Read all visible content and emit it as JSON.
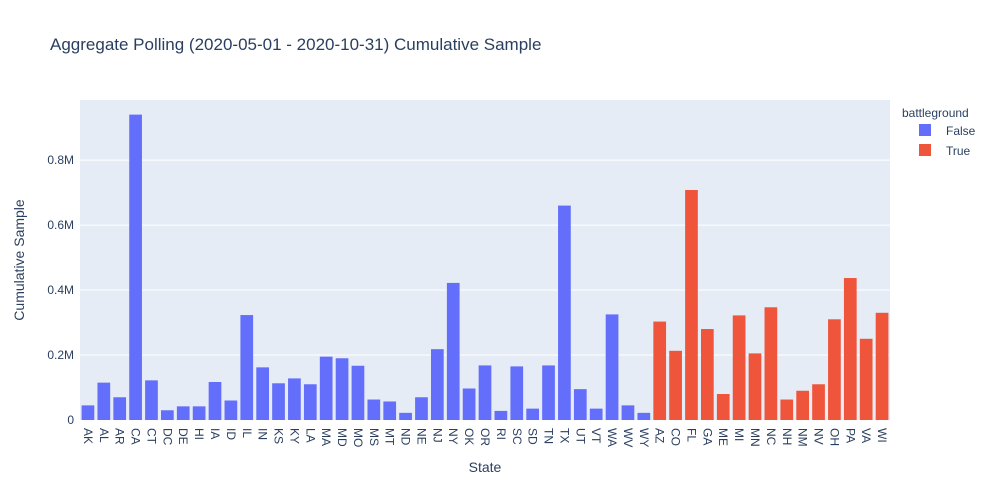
{
  "chart_data": {
    "type": "bar",
    "title": "Aggregate Polling (2020-05-01 - 2020-10-31) Cumulative Sample",
    "xlabel": "State",
    "ylabel": "Cumulative Sample",
    "ylim": [
      0,
      985000
    ],
    "yticks": [
      0,
      200000,
      400000,
      600000,
      800000
    ],
    "ytick_labels": [
      "0",
      "0.2M",
      "0.4M",
      "0.6M",
      "0.8M"
    ],
    "grid": true,
    "legend": {
      "title": "battleground",
      "placement": "top-right"
    },
    "series": [
      {
        "name": "False",
        "color": "#636efa",
        "categories": [
          "AK",
          "AL",
          "AR",
          "CA",
          "CT",
          "DC",
          "DE",
          "HI",
          "IA",
          "ID",
          "IL",
          "IN",
          "KS",
          "KY",
          "LA",
          "MA",
          "MD",
          "MO",
          "MS",
          "MT",
          "ND",
          "NE",
          "NJ",
          "NY",
          "OK",
          "OR",
          "RI",
          "SC",
          "SD",
          "TN",
          "TX",
          "UT",
          "VT",
          "WA",
          "WV",
          "WY"
        ],
        "values": [
          45000,
          115000,
          70000,
          940000,
          122000,
          30000,
          42000,
          42000,
          117000,
          60000,
          323000,
          162000,
          113000,
          128000,
          110000,
          195000,
          190000,
          167000,
          63000,
          57000,
          22000,
          70000,
          218000,
          422000,
          97000,
          168000,
          28000,
          165000,
          35000,
          168000,
          660000,
          95000,
          35000,
          325000,
          45000,
          22000
        ]
      },
      {
        "name": "True",
        "color": "#ef553b",
        "categories": [
          "AZ",
          "CO",
          "FL",
          "GA",
          "ME",
          "MI",
          "MN",
          "NC",
          "NH",
          "NM",
          "NV",
          "OH",
          "PA",
          "VA",
          "WI"
        ],
        "values": [
          303000,
          213000,
          708000,
          280000,
          80000,
          322000,
          205000,
          347000,
          63000,
          90000,
          110000,
          310000,
          437000,
          250000,
          330000
        ]
      }
    ]
  }
}
